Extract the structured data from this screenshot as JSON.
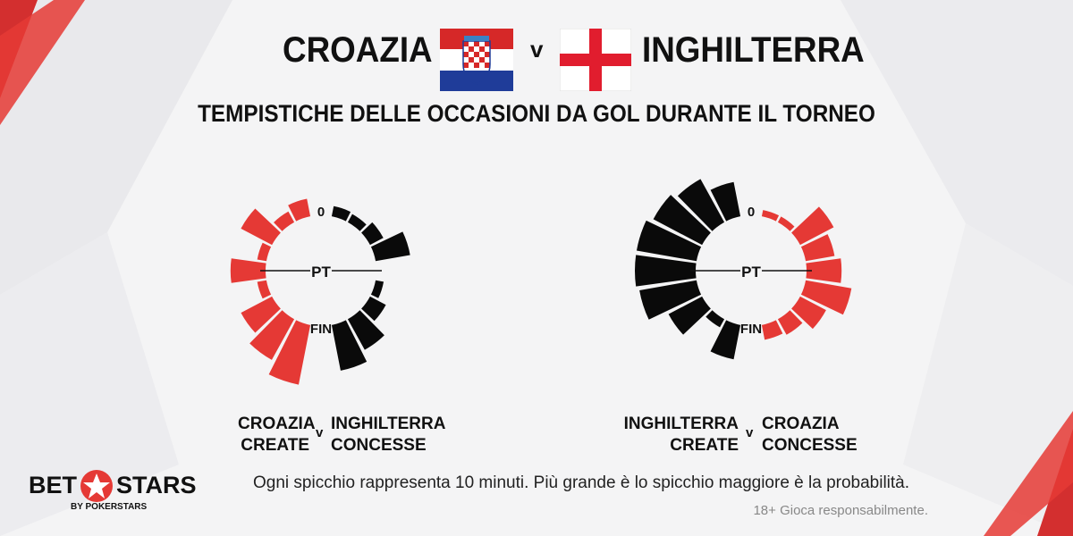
{
  "header": {
    "team_a": "CROAZIA",
    "vs": "v",
    "team_b": "INGHILTERRA",
    "subtitle": "TEMPISTICHE DELLE OCCASIONI DA GOL DURANTE IL TORNEO"
  },
  "colors": {
    "red": "#e53935",
    "black": "#0a0a0a"
  },
  "chart_data": [
    {
      "type": "radial-bar",
      "center_labels": {
        "start": "0",
        "half": "PT",
        "end": "FIN"
      },
      "series": [
        {
          "name": "CROAZIA CREATE",
          "color": "#e53935",
          "side": "left",
          "values": [
            0.25,
            0.15,
            0.55,
            0.1,
            0.55,
            0.1,
            0.55,
            0.75,
            1.0
          ]
        },
        {
          "name": "INGHILTERRA CONCESSE",
          "color": "#0a0a0a",
          "side": "right",
          "values": [
            0.12,
            0.1,
            0.2,
            0.55,
            0.0,
            0.08,
            0.25,
            0.55,
            0.75
          ]
        }
      ]
    },
    {
      "type": "radial-bar",
      "center_labels": {
        "start": "0",
        "half": "PT",
        "end": "FIN"
      },
      "series": [
        {
          "name": "INGHILTERRA CREATE",
          "color": "#0a0a0a",
          "side": "left",
          "values": [
            0.55,
            0.8,
            0.9,
            1.0,
            1.0,
            0.95,
            0.6,
            0.1,
            0.55
          ]
        },
        {
          "name": "CROAZIA CONCESSE",
          "color": "#e53935",
          "side": "right",
          "values": [
            0.05,
            0.05,
            0.6,
            0.45,
            0.55,
            0.75,
            0.45,
            0.25,
            0.2
          ]
        }
      ]
    }
  ],
  "captions": {
    "left": {
      "line1": "CROAZIA",
      "line2": "CREATE",
      "v": "v",
      "line3": "INGHILTERRA",
      "line4": "CONCESSE"
    },
    "right": {
      "line1": "INGHILTERRA",
      "line2": "CREATE",
      "v": "v",
      "line3": "CROAZIA",
      "line4": "CONCESSE"
    }
  },
  "footer": {
    "note": "Ogni spicchio rappresenta 10 minuti. Più grande è lo spicchio maggiore è la probabilità.",
    "disclaimer": "18+ Gioca responsabilmente.",
    "logo_bet": "BET",
    "logo_stars": "STARS",
    "logo_sub": "BY POKERSTARS"
  }
}
